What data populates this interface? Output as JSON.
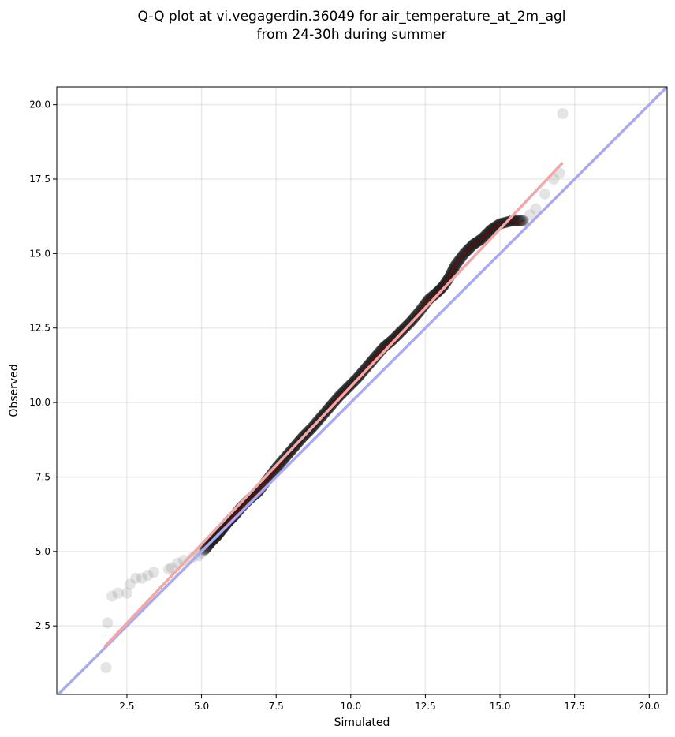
{
  "chart_data": {
    "type": "scatter",
    "title": [
      "Q-Q plot at vi.vegagerdin.36049 for air_temperature_at_2m_agl",
      "from 24-30h during summer"
    ],
    "xlabel": "Simulated",
    "ylabel": "Observed",
    "xlim": [
      0.15,
      20.6
    ],
    "ylim": [
      0.2,
      20.6
    ],
    "xticks": [
      2.5,
      5.0,
      7.5,
      10.0,
      12.5,
      15.0,
      17.5,
      20.0
    ],
    "yticks": [
      2.5,
      5.0,
      7.5,
      10.0,
      12.5,
      15.0,
      17.5,
      20.0
    ],
    "xtick_labels": [
      "2.5",
      "5.0",
      "7.5",
      "10.0",
      "12.5",
      "15.0",
      "17.5",
      "20.0"
    ],
    "ytick_labels": [
      "2.5",
      "5.0",
      "7.5",
      "10.0",
      "12.5",
      "15.0",
      "17.5",
      "20.0"
    ],
    "grid": true,
    "point_color": "#777777",
    "identity_line": {
      "color": "#aaaaf2",
      "from": [
        0.15,
        0.15
      ],
      "to": [
        20.6,
        20.6
      ]
    },
    "fit_line": {
      "color": "#f2a8a8",
      "from": [
        1.75,
        1.8
      ],
      "to": [
        17.1,
        18.05
      ]
    },
    "trace_color": "#8b0000",
    "points": [
      [
        1.8,
        1.1
      ],
      [
        1.85,
        2.6
      ],
      [
        2.0,
        3.5
      ],
      [
        2.2,
        3.6
      ],
      [
        2.5,
        3.6
      ],
      [
        2.6,
        3.9
      ],
      [
        2.8,
        4.1
      ],
      [
        3.0,
        4.1
      ],
      [
        3.2,
        4.2
      ],
      [
        3.4,
        4.3
      ],
      [
        3.9,
        4.4
      ],
      [
        4.0,
        4.45
      ],
      [
        4.2,
        4.6
      ],
      [
        4.4,
        4.7
      ],
      [
        4.7,
        4.8
      ],
      [
        4.9,
        4.85
      ],
      [
        5.0,
        4.95
      ],
      [
        5.1,
        5.05
      ],
      [
        15.8,
        16.1
      ],
      [
        16.0,
        16.3
      ],
      [
        16.2,
        16.5
      ],
      [
        16.5,
        17.0
      ],
      [
        16.8,
        17.5
      ],
      [
        17.0,
        17.7
      ],
      [
        17.1,
        19.7
      ]
    ],
    "trace": [
      [
        5.1,
        5.05
      ],
      [
        5.3,
        5.3
      ],
      [
        5.5,
        5.5
      ],
      [
        5.7,
        5.75
      ],
      [
        5.9,
        6.0
      ],
      [
        6.1,
        6.2
      ],
      [
        6.3,
        6.45
      ],
      [
        6.6,
        6.75
      ],
      [
        6.9,
        7.0
      ],
      [
        7.2,
        7.4
      ],
      [
        7.5,
        7.8
      ],
      [
        7.8,
        8.15
      ],
      [
        8.1,
        8.5
      ],
      [
        8.4,
        8.85
      ],
      [
        8.7,
        9.15
      ],
      [
        9.0,
        9.5
      ],
      [
        9.3,
        9.85
      ],
      [
        9.6,
        10.2
      ],
      [
        9.9,
        10.5
      ],
      [
        10.2,
        10.8
      ],
      [
        10.5,
        11.15
      ],
      [
        10.8,
        11.5
      ],
      [
        11.1,
        11.85
      ],
      [
        11.4,
        12.1
      ],
      [
        11.7,
        12.4
      ],
      [
        12.0,
        12.7
      ],
      [
        12.3,
        13.05
      ],
      [
        12.6,
        13.45
      ],
      [
        12.9,
        13.7
      ],
      [
        13.1,
        13.9
      ],
      [
        13.3,
        14.2
      ],
      [
        13.5,
        14.6
      ],
      [
        13.8,
        15.0
      ],
      [
        14.1,
        15.3
      ],
      [
        14.4,
        15.5
      ],
      [
        14.7,
        15.8
      ],
      [
        15.0,
        16.0
      ],
      [
        15.4,
        16.1
      ],
      [
        15.8,
        16.1
      ]
    ]
  }
}
